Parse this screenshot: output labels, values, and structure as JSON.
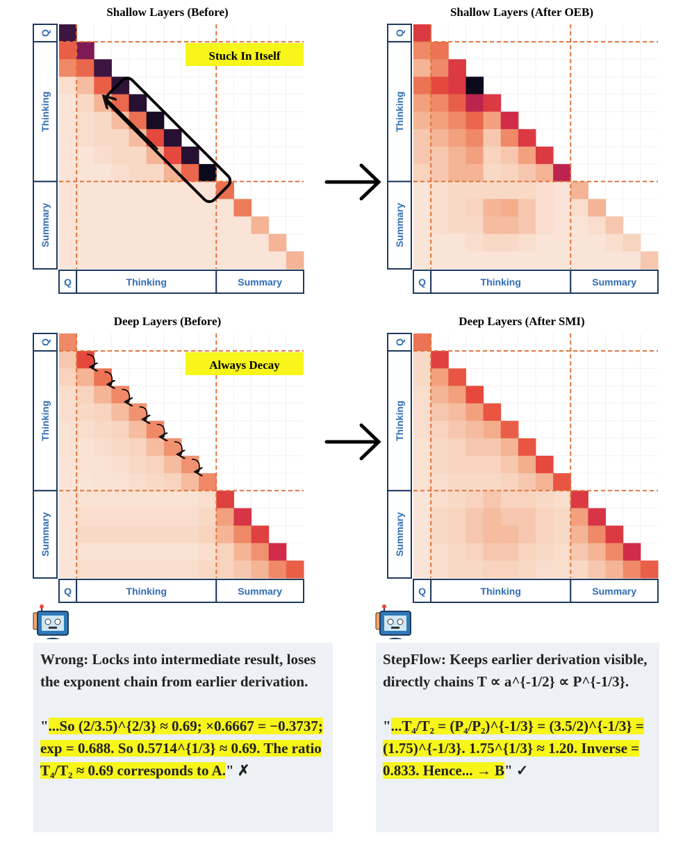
{
  "colormap": [
    "#fcf0e8",
    "#f8d6c2",
    "#f3ac8a",
    "#ed7a58",
    "#e64b3c",
    "#d0294a",
    "#9e1c5a",
    "#5c1a52",
    "#2a1236",
    "#0b0a1c"
  ],
  "panels": [
    {
      "title": "Shallow Layers (Before)",
      "row_labels": [
        "Q",
        "Thinking",
        "Summary"
      ],
      "col_labels": [
        "Q",
        "Thinking",
        "Summary"
      ],
      "annotation": "Stuck In Itself",
      "matrix": [
        [
          0.85
        ],
        [
          0.4,
          0.72
        ],
        [
          0.3,
          0.38,
          0.85
        ],
        [
          0.08,
          0.18,
          0.4,
          0.88
        ],
        [
          0.05,
          0.1,
          0.2,
          0.38,
          0.9
        ],
        [
          0.05,
          0.08,
          0.1,
          0.18,
          0.36,
          0.96
        ],
        [
          0.05,
          0.08,
          0.1,
          0.1,
          0.18,
          0.45,
          0.9
        ],
        [
          0.05,
          0.05,
          0.08,
          0.1,
          0.1,
          0.2,
          0.45,
          0.9
        ],
        [
          0.05,
          0.05,
          0.05,
          0.08,
          0.1,
          0.1,
          0.2,
          0.38,
          1
        ],
        [
          0.05,
          0.05,
          0.05,
          0.05,
          0.05,
          0.05,
          0.05,
          0.05,
          0.05,
          0.36
        ],
        [
          0.05,
          0.05,
          0.05,
          0.05,
          0.05,
          0.05,
          0.05,
          0.05,
          0.05,
          0.05,
          0.33
        ],
        [
          0.05,
          0.05,
          0.05,
          0.05,
          0.05,
          0.05,
          0.05,
          0.05,
          0.05,
          0.05,
          0.05,
          0.2
        ],
        [
          0.05,
          0.05,
          0.05,
          0.05,
          0.05,
          0.05,
          0.05,
          0.05,
          0.05,
          0.05,
          0.05,
          0.05,
          0.2
        ],
        [
          0.05,
          0.05,
          0.05,
          0.05,
          0.05,
          0.05,
          0.05,
          0.05,
          0.05,
          0.05,
          0.05,
          0.05,
          0.05,
          0.2
        ]
      ]
    },
    {
      "title": "Shallow Layers (After OEB)",
      "row_labels": [
        "Q",
        "Thinking",
        "Summary"
      ],
      "col_labels": [
        "Q",
        "Thinking",
        "Summary"
      ],
      "matrix": [
        [
          0.5
        ],
        [
          0.3,
          0.35
        ],
        [
          0.2,
          0.3,
          0.5
        ],
        [
          0.35,
          0.45,
          0.5,
          1
        ],
        [
          0.25,
          0.3,
          0.4,
          0.6,
          0.5
        ],
        [
          0.2,
          0.25,
          0.3,
          0.38,
          0.25,
          0.55
        ],
        [
          0.15,
          0.2,
          0.25,
          0.3,
          0.15,
          0.3,
          0.5
        ],
        [
          0.15,
          0.15,
          0.2,
          0.25,
          0.12,
          0.15,
          0.25,
          0.5
        ],
        [
          0.12,
          0.15,
          0.2,
          0.2,
          0.1,
          0.12,
          0.15,
          0.2,
          0.6
        ],
        [
          0.05,
          0.08,
          0.1,
          0.1,
          0.1,
          0.1,
          0.1,
          0.08,
          0.05,
          0.2
        ],
        [
          0.05,
          0.08,
          0.1,
          0.12,
          0.2,
          0.22,
          0.15,
          0.08,
          0.05,
          0.08,
          0.2
        ],
        [
          0.05,
          0.08,
          0.1,
          0.1,
          0.18,
          0.18,
          0.15,
          0.08,
          0.05,
          0.05,
          0.08,
          0.15
        ],
        [
          0.05,
          0.05,
          0.05,
          0.08,
          0.1,
          0.1,
          0.08,
          0.05,
          0.05,
          0.05,
          0.05,
          0.08,
          0.12
        ],
        [
          0.05,
          0.05,
          0.05,
          0.05,
          0.05,
          0.05,
          0.05,
          0.05,
          0.05,
          0.05,
          0.05,
          0.05,
          0.05,
          0.15
        ]
      ]
    },
    {
      "title": "Deep Layers (Before)",
      "row_labels": [
        "Q",
        "Thinking",
        "Summary"
      ],
      "col_labels": [
        "Q",
        "Thinking",
        "Summary"
      ],
      "annotation": "Always Decay",
      "matrix": [
        [
          0.3
        ],
        [
          0.15,
          0.45
        ],
        [
          0.12,
          0.2,
          0.35
        ],
        [
          0.08,
          0.12,
          0.2,
          0.3
        ],
        [
          0.08,
          0.1,
          0.12,
          0.18,
          0.28
        ],
        [
          0.06,
          0.08,
          0.1,
          0.12,
          0.18,
          0.3
        ],
        [
          0.06,
          0.06,
          0.08,
          0.1,
          0.12,
          0.18,
          0.28
        ],
        [
          0.05,
          0.06,
          0.06,
          0.08,
          0.1,
          0.12,
          0.18,
          0.28
        ],
        [
          0.05,
          0.05,
          0.06,
          0.06,
          0.08,
          0.1,
          0.12,
          0.18,
          0.3
        ],
        [
          0.05,
          0.06,
          0.06,
          0.06,
          0.06,
          0.06,
          0.06,
          0.06,
          0.08,
          0.48
        ],
        [
          0.05,
          0.08,
          0.08,
          0.08,
          0.08,
          0.08,
          0.08,
          0.08,
          0.1,
          0.25,
          0.52
        ],
        [
          0.05,
          0.1,
          0.1,
          0.1,
          0.1,
          0.1,
          0.1,
          0.1,
          0.12,
          0.2,
          0.3,
          0.48
        ],
        [
          0.05,
          0.06,
          0.06,
          0.06,
          0.06,
          0.06,
          0.06,
          0.06,
          0.08,
          0.12,
          0.2,
          0.28,
          0.55
        ],
        [
          0.05,
          0.08,
          0.08,
          0.08,
          0.08,
          0.08,
          0.08,
          0.08,
          0.1,
          0.12,
          0.15,
          0.2,
          0.3,
          0.4
        ]
      ]
    },
    {
      "title": "Deep Layers (After SMI)",
      "row_labels": [
        "Q",
        "Thinking",
        "Summary"
      ],
      "col_labels": [
        "Q",
        "Thinking",
        "Summary"
      ],
      "matrix": [
        [
          0.35
        ],
        [
          0.1,
          0.48
        ],
        [
          0.1,
          0.25,
          0.42
        ],
        [
          0.08,
          0.2,
          0.25,
          0.45
        ],
        [
          0.08,
          0.15,
          0.18,
          0.25,
          0.42
        ],
        [
          0.08,
          0.12,
          0.15,
          0.18,
          0.22,
          0.4
        ],
        [
          0.06,
          0.1,
          0.12,
          0.15,
          0.15,
          0.2,
          0.42
        ],
        [
          0.06,
          0.1,
          0.12,
          0.12,
          0.12,
          0.15,
          0.22,
          0.45
        ],
        [
          0.06,
          0.08,
          0.1,
          0.1,
          0.1,
          0.12,
          0.15,
          0.2,
          0.42
        ],
        [
          0.05,
          0.08,
          0.1,
          0.12,
          0.15,
          0.12,
          0.12,
          0.1,
          0.08,
          0.5
        ],
        [
          0.05,
          0.1,
          0.12,
          0.15,
          0.18,
          0.15,
          0.15,
          0.12,
          0.1,
          0.25,
          0.52
        ],
        [
          0.05,
          0.1,
          0.12,
          0.15,
          0.18,
          0.18,
          0.15,
          0.12,
          0.1,
          0.2,
          0.3,
          0.5
        ],
        [
          0.05,
          0.08,
          0.1,
          0.12,
          0.15,
          0.15,
          0.12,
          0.1,
          0.08,
          0.15,
          0.2,
          0.3,
          0.55
        ],
        [
          0.05,
          0.08,
          0.1,
          0.1,
          0.12,
          0.12,
          0.1,
          0.08,
          0.08,
          0.1,
          0.15,
          0.2,
          0.3,
          0.4
        ]
      ]
    }
  ],
  "notes": [
    {
      "heading": "Wrong: Locks into intermediate result, loses the exponent chain from earlier derivation.",
      "quote_open": "\"",
      "quote": "...So (2/3.5)^{2/3} ≈ 0.69; ×0.6667 = −0.3737; exp = 0.688. So 0.5714^{1/3} ≈ 0.69. The ratio T₄/T₂ ≈ 0.69 corresponds to A.",
      "quote_close": "\" ✗"
    },
    {
      "heading": "StepFlow: Keeps earlier derivation visible, directly chains T ∝ a^{-1/2} ∝ P^{-1/3}.",
      "quote_open": "\"",
      "quote": "...T₄/T₂ = (P₄/P₂)^{-1/3} = (3.5/2)^{-1/3} = (1.75)^{-1/3}. 1.75^{1/3} ≈ 1.20. Inverse = 0.833. Hence... → B",
      "quote_close": "\" ✓"
    }
  ]
}
